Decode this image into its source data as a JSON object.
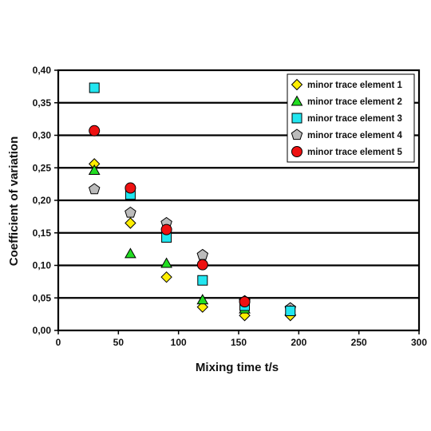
{
  "chart_data": {
    "type": "scatter",
    "title": "",
    "xlabel": "Mixing time t/s",
    "ylabel": "Coefficient of variation",
    "xlim": [
      0,
      300
    ],
    "ylim": [
      0,
      0.4
    ],
    "x_ticks": [
      "0",
      "50",
      "100",
      "150",
      "200",
      "250",
      "300"
    ],
    "y_ticks": [
      "0,00",
      "0,05",
      "0,10",
      "0,15",
      "0,20",
      "0,25",
      "0,30",
      "0,35",
      "0,40"
    ],
    "grid": "horizontal",
    "legend_position": "top-right",
    "series": [
      {
        "name": "minor trace element 1",
        "marker": "diamond",
        "color": "#ffee00",
        "points": [
          [
            30,
            0.256
          ],
          [
            60,
            0.165
          ],
          [
            90,
            0.082
          ],
          [
            120,
            0.036
          ],
          [
            155,
            0.023
          ],
          [
            193,
            0.023
          ]
        ]
      },
      {
        "name": "minor trace element 2",
        "marker": "triangle",
        "color": "#22dd22",
        "points": [
          [
            30,
            0.246
          ],
          [
            60,
            0.118
          ],
          [
            90,
            0.103
          ],
          [
            120,
            0.047
          ],
          [
            155,
            0.033
          ],
          [
            193,
            0.03
          ]
        ]
      },
      {
        "name": "minor trace element 3",
        "marker": "square",
        "color": "#22e6f0",
        "points": [
          [
            30,
            0.373
          ],
          [
            60,
            0.209
          ],
          [
            90,
            0.143
          ],
          [
            120,
            0.077
          ],
          [
            155,
            0.038
          ],
          [
            193,
            0.03
          ]
        ]
      },
      {
        "name": "minor trace element 4",
        "marker": "pentagon",
        "color": "#bbbbbb",
        "points": [
          [
            30,
            0.217
          ],
          [
            60,
            0.181
          ],
          [
            90,
            0.165
          ],
          [
            120,
            0.116
          ],
          [
            155,
            0.045
          ],
          [
            193,
            0.034
          ]
        ]
      },
      {
        "name": "minor trace element 5",
        "marker": "circle",
        "color": "#ee1111",
        "points": [
          [
            30,
            0.307
          ],
          [
            60,
            0.219
          ],
          [
            90,
            0.155
          ],
          [
            120,
            0.101
          ],
          [
            155,
            0.044
          ]
        ]
      }
    ]
  }
}
